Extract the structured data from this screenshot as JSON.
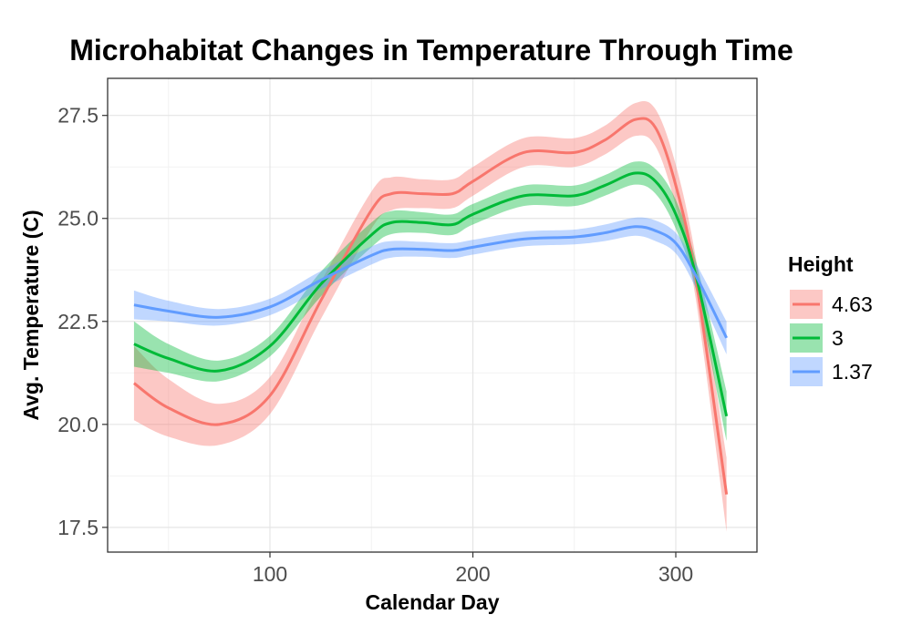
{
  "chart_data": {
    "type": "line",
    "title": "Microhabitat Changes in Temperature Through Time",
    "xlabel": "Calendar Day",
    "ylabel": "Avg. Temperature (C)",
    "xlim": [
      20,
      340
    ],
    "ylim": [
      16.9,
      28.4
    ],
    "x_ticks": [
      100,
      200,
      300
    ],
    "x_tick_labels": [
      "100",
      "200",
      "300"
    ],
    "y_ticks": [
      17.5,
      20.0,
      22.5,
      25.0,
      27.5
    ],
    "y_tick_labels": [
      "17.5",
      "20.0",
      "22.5",
      "25.0",
      "27.5"
    ],
    "grid": true,
    "legend": {
      "title": "Height",
      "position": "right"
    },
    "x": [
      33,
      50,
      75,
      100,
      125,
      150,
      160,
      175,
      190,
      200,
      225,
      250,
      265,
      280,
      290,
      300,
      310,
      325
    ],
    "series": [
      {
        "name": "4.63",
        "color": "#F8766D",
        "values": [
          21.0,
          20.4,
          20.0,
          20.7,
          23.0,
          25.2,
          25.6,
          25.6,
          25.6,
          25.9,
          26.6,
          26.6,
          26.9,
          27.4,
          27.2,
          25.8,
          23.5,
          18.3
        ],
        "band": [
          0.9,
          0.7,
          0.5,
          0.45,
          0.45,
          0.45,
          0.4,
          0.35,
          0.35,
          0.35,
          0.35,
          0.35,
          0.35,
          0.4,
          0.45,
          0.5,
          0.5,
          0.9
        ]
      },
      {
        "name": "3",
        "color": "#00BA38",
        "values": [
          21.95,
          21.6,
          21.3,
          21.9,
          23.4,
          24.6,
          24.9,
          24.9,
          24.85,
          25.1,
          25.55,
          25.55,
          25.8,
          26.1,
          25.9,
          25.1,
          23.6,
          20.2
        ],
        "band": [
          0.55,
          0.35,
          0.25,
          0.25,
          0.3,
          0.3,
          0.28,
          0.25,
          0.25,
          0.25,
          0.25,
          0.25,
          0.25,
          0.28,
          0.3,
          0.35,
          0.35,
          0.6
        ]
      },
      {
        "name": "1.37",
        "color": "#619CFF",
        "values": [
          22.9,
          22.75,
          22.6,
          22.85,
          23.5,
          24.1,
          24.25,
          24.25,
          24.22,
          24.3,
          24.5,
          24.55,
          24.65,
          24.8,
          24.7,
          24.4,
          23.6,
          22.1
        ],
        "band": [
          0.35,
          0.25,
          0.2,
          0.2,
          0.22,
          0.22,
          0.2,
          0.18,
          0.18,
          0.18,
          0.18,
          0.18,
          0.2,
          0.22,
          0.25,
          0.25,
          0.3,
          0.4
        ]
      }
    ]
  }
}
